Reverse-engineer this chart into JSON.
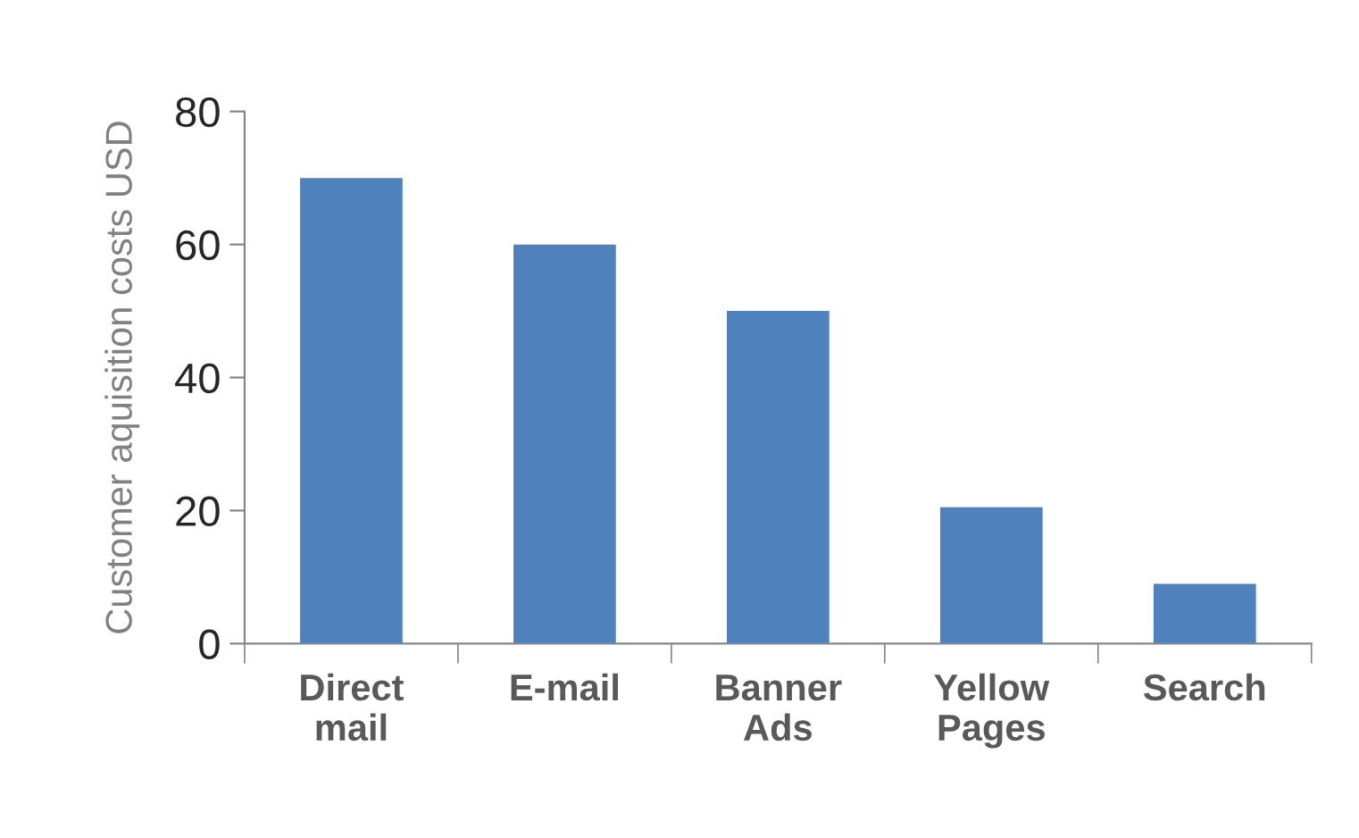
{
  "chart_data": {
    "type": "bar",
    "ylabel": "Customer aquisition costs USD",
    "categories": [
      "Direct\nmail",
      "E-mail",
      "Banner\nAds",
      "Yellow\nPages",
      "Search"
    ],
    "values": [
      70,
      60,
      50,
      20.5,
      9
    ],
    "color": "#4f81bd",
    "ylim": [
      0,
      80
    ],
    "yticks": [
      0,
      20,
      40,
      60,
      80
    ],
    "grid": false
  }
}
